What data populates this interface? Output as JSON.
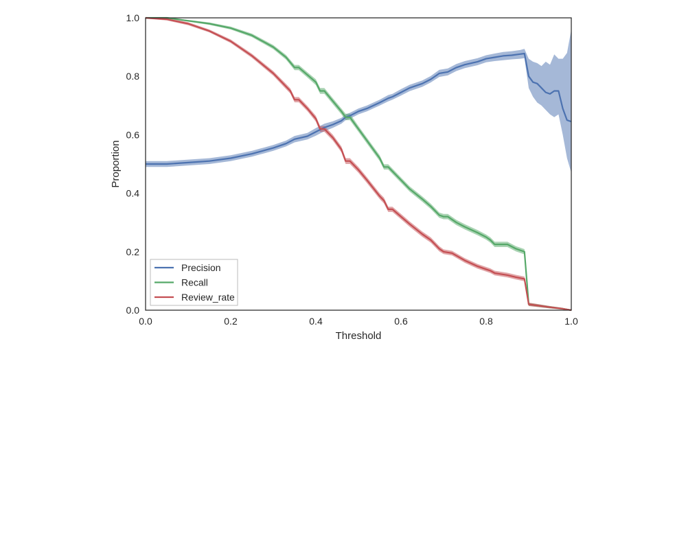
{
  "chart_data": {
    "type": "line",
    "title": "",
    "xlabel": "Threshold",
    "ylabel": "Proportion",
    "xlim": [
      0.0,
      1.0
    ],
    "ylim": [
      0.0,
      1.0
    ],
    "xticks": [
      "0.0",
      "0.2",
      "0.4",
      "0.6",
      "0.8",
      "1.0"
    ],
    "yticks": [
      "0.0",
      "0.2",
      "0.4",
      "0.6",
      "0.8",
      "1.0"
    ],
    "grid": false,
    "legend": {
      "position": "lower-left",
      "entries": [
        "Precision",
        "Recall",
        "Review_rate"
      ]
    },
    "series": [
      {
        "name": "Precision",
        "color": "#4c72b0",
        "x": [
          0.0,
          0.05,
          0.1,
          0.15,
          0.2,
          0.25,
          0.3,
          0.33,
          0.35,
          0.38,
          0.4,
          0.42,
          0.44,
          0.46,
          0.47,
          0.48,
          0.5,
          0.52,
          0.55,
          0.57,
          0.58,
          0.6,
          0.62,
          0.65,
          0.67,
          0.69,
          0.71,
          0.73,
          0.75,
          0.78,
          0.8,
          0.82,
          0.84,
          0.86,
          0.88,
          0.89,
          0.9,
          0.91,
          0.92,
          0.93,
          0.94,
          0.95,
          0.96,
          0.97,
          0.98,
          0.99,
          1.0
        ],
        "y": [
          0.5,
          0.5,
          0.505,
          0.51,
          0.52,
          0.535,
          0.555,
          0.57,
          0.585,
          0.595,
          0.61,
          0.625,
          0.635,
          0.648,
          0.66,
          0.665,
          0.68,
          0.69,
          0.71,
          0.725,
          0.73,
          0.745,
          0.76,
          0.775,
          0.79,
          0.81,
          0.815,
          0.83,
          0.84,
          0.85,
          0.86,
          0.865,
          0.87,
          0.872,
          0.876,
          0.878,
          0.8,
          0.78,
          0.775,
          0.76,
          0.745,
          0.74,
          0.75,
          0.75,
          0.69,
          0.65,
          0.645
        ],
        "lower": [
          0.49,
          0.49,
          0.495,
          0.5,
          0.51,
          0.525,
          0.545,
          0.56,
          0.574,
          0.584,
          0.597,
          0.612,
          0.624,
          0.638,
          0.65,
          0.655,
          0.67,
          0.68,
          0.7,
          0.714,
          0.72,
          0.734,
          0.749,
          0.764,
          0.779,
          0.798,
          0.803,
          0.818,
          0.828,
          0.838,
          0.848,
          0.852,
          0.855,
          0.858,
          0.86,
          0.862,
          0.76,
          0.73,
          0.71,
          0.7,
          0.685,
          0.67,
          0.66,
          0.67,
          0.6,
          0.52,
          0.47
        ],
        "upper": [
          0.51,
          0.51,
          0.515,
          0.52,
          0.53,
          0.545,
          0.565,
          0.58,
          0.596,
          0.606,
          0.623,
          0.638,
          0.646,
          0.658,
          0.67,
          0.675,
          0.69,
          0.7,
          0.72,
          0.736,
          0.74,
          0.756,
          0.771,
          0.786,
          0.801,
          0.822,
          0.827,
          0.842,
          0.852,
          0.862,
          0.872,
          0.878,
          0.883,
          0.886,
          0.89,
          0.894,
          0.86,
          0.85,
          0.845,
          0.835,
          0.85,
          0.84,
          0.875,
          0.86,
          0.86,
          0.88,
          0.96
        ]
      },
      {
        "name": "Recall",
        "color": "#55a868",
        "x": [
          0.0,
          0.05,
          0.1,
          0.15,
          0.2,
          0.25,
          0.3,
          0.33,
          0.35,
          0.36,
          0.38,
          0.4,
          0.41,
          0.42,
          0.44,
          0.46,
          0.47,
          0.48,
          0.5,
          0.52,
          0.55,
          0.56,
          0.57,
          0.58,
          0.6,
          0.62,
          0.65,
          0.67,
          0.69,
          0.7,
          0.71,
          0.73,
          0.75,
          0.78,
          0.8,
          0.81,
          0.82,
          0.85,
          0.87,
          0.89,
          0.9,
          0.95,
          0.98,
          1.0
        ],
        "y": [
          1.0,
          1.0,
          0.99,
          0.98,
          0.965,
          0.94,
          0.9,
          0.865,
          0.83,
          0.83,
          0.805,
          0.78,
          0.75,
          0.75,
          0.715,
          0.68,
          0.66,
          0.66,
          0.62,
          0.58,
          0.52,
          0.49,
          0.49,
          0.475,
          0.445,
          0.415,
          0.38,
          0.355,
          0.325,
          0.32,
          0.32,
          0.3,
          0.285,
          0.265,
          0.25,
          0.24,
          0.225,
          0.225,
          0.21,
          0.2,
          0.02,
          0.01,
          0.005,
          0.0
        ],
        "lower": [
          0.997,
          0.997,
          0.987,
          0.976,
          0.96,
          0.934,
          0.893,
          0.857,
          0.821,
          0.821,
          0.796,
          0.77,
          0.74,
          0.74,
          0.705,
          0.67,
          0.65,
          0.65,
          0.61,
          0.57,
          0.51,
          0.481,
          0.481,
          0.466,
          0.436,
          0.406,
          0.371,
          0.346,
          0.316,
          0.311,
          0.311,
          0.291,
          0.276,
          0.256,
          0.241,
          0.231,
          0.216,
          0.216,
          0.201,
          0.191,
          0.015,
          0.006,
          0.002,
          0.0
        ],
        "upper": [
          1.0,
          1.0,
          0.993,
          0.984,
          0.97,
          0.946,
          0.907,
          0.873,
          0.839,
          0.839,
          0.814,
          0.79,
          0.76,
          0.76,
          0.725,
          0.69,
          0.672,
          0.672,
          0.63,
          0.59,
          0.53,
          0.499,
          0.499,
          0.484,
          0.454,
          0.424,
          0.389,
          0.364,
          0.334,
          0.329,
          0.329,
          0.309,
          0.294,
          0.274,
          0.259,
          0.249,
          0.234,
          0.234,
          0.219,
          0.209,
          0.025,
          0.014,
          0.008,
          0.002
        ]
      },
      {
        "name": "Review_rate",
        "color": "#c44e52",
        "x": [
          0.0,
          0.05,
          0.1,
          0.15,
          0.2,
          0.25,
          0.3,
          0.33,
          0.34,
          0.35,
          0.36,
          0.38,
          0.4,
          0.41,
          0.42,
          0.44,
          0.46,
          0.47,
          0.48,
          0.5,
          0.52,
          0.55,
          0.56,
          0.57,
          0.58,
          0.6,
          0.62,
          0.65,
          0.67,
          0.68,
          0.69,
          0.7,
          0.72,
          0.75,
          0.78,
          0.8,
          0.81,
          0.82,
          0.85,
          0.87,
          0.89,
          0.9,
          0.95,
          0.98,
          1.0
        ],
        "y": [
          1.0,
          0.995,
          0.98,
          0.955,
          0.92,
          0.87,
          0.81,
          0.765,
          0.75,
          0.72,
          0.72,
          0.69,
          0.655,
          0.62,
          0.62,
          0.59,
          0.55,
          0.51,
          0.51,
          0.48,
          0.445,
          0.39,
          0.375,
          0.345,
          0.345,
          0.32,
          0.295,
          0.26,
          0.24,
          0.225,
          0.21,
          0.2,
          0.195,
          0.17,
          0.15,
          0.14,
          0.135,
          0.127,
          0.12,
          0.113,
          0.107,
          0.02,
          0.01,
          0.005,
          0.0
        ],
        "lower": [
          0.997,
          0.991,
          0.975,
          0.95,
          0.914,
          0.863,
          0.802,
          0.756,
          0.741,
          0.711,
          0.711,
          0.681,
          0.645,
          0.61,
          0.61,
          0.58,
          0.54,
          0.5,
          0.5,
          0.47,
          0.435,
          0.38,
          0.365,
          0.336,
          0.336,
          0.311,
          0.286,
          0.251,
          0.231,
          0.216,
          0.201,
          0.192,
          0.187,
          0.162,
          0.142,
          0.132,
          0.127,
          0.119,
          0.112,
          0.105,
          0.099,
          0.014,
          0.006,
          0.002,
          0.0
        ],
        "upper": [
          1.0,
          0.999,
          0.985,
          0.96,
          0.926,
          0.877,
          0.818,
          0.774,
          0.759,
          0.729,
          0.729,
          0.699,
          0.665,
          0.63,
          0.63,
          0.6,
          0.56,
          0.52,
          0.52,
          0.49,
          0.455,
          0.4,
          0.385,
          0.354,
          0.354,
          0.329,
          0.304,
          0.269,
          0.249,
          0.234,
          0.219,
          0.208,
          0.203,
          0.178,
          0.158,
          0.148,
          0.143,
          0.135,
          0.128,
          0.121,
          0.115,
          0.026,
          0.014,
          0.008,
          0.002
        ]
      }
    ]
  }
}
